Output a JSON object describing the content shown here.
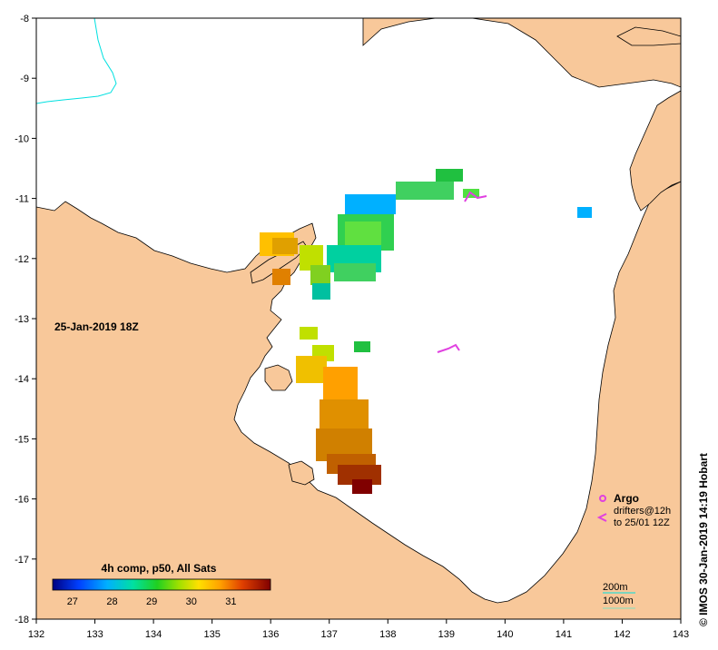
{
  "map": {
    "date_label": "25-Jan-2019 18Z",
    "credit": "© IMOS 30-Jan-2019 14:19 Hobart",
    "x_ticks": [
      "132",
      "133",
      "134",
      "135",
      "136",
      "137",
      "138",
      "139",
      "140",
      "141",
      "142",
      "143"
    ],
    "y_ticks": [
      "-8",
      "-9",
      "-10",
      "-11",
      "-12",
      "-13",
      "-14",
      "-15",
      "-16",
      "-17",
      "-18"
    ],
    "x_range": [
      132,
      143
    ],
    "y_range": [
      -18,
      -8
    ],
    "colorbar": {
      "title": "4h comp, p50, All Sats",
      "labels": [
        "27",
        "28",
        "29",
        "30",
        "31"
      ],
      "range": [
        26.5,
        32
      ]
    },
    "legend": {
      "argo": "Argo",
      "drifters_line1": "drifters@12h",
      "drifters_line2": "to 25/01 12Z"
    },
    "contours": {
      "c200": "200m",
      "c1000": "1000m"
    },
    "colors": {
      "land": "#f8c89a",
      "ocean": "#ffffff",
      "contour_200": "#00e0e0",
      "argo": "#e040e0"
    }
  }
}
